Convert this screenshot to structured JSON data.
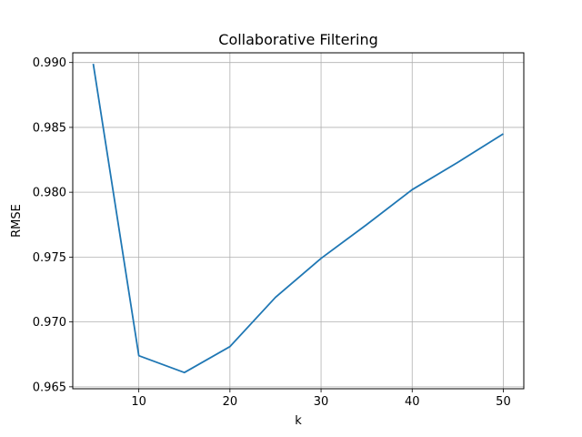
{
  "chart_data": {
    "type": "line",
    "title": "Collaborative Filtering",
    "xlabel": "k",
    "ylabel": "RMSE",
    "xlim": [
      2.75,
      52.25
    ],
    "ylim": [
      0.96485,
      0.99075
    ],
    "xticks": [
      10,
      20,
      30,
      40,
      50
    ],
    "yticks": [
      0.965,
      0.97,
      0.975,
      0.98,
      0.985,
      0.99
    ],
    "ytick_labels": [
      "0.965",
      "0.970",
      "0.975",
      "0.980",
      "0.985",
      "0.990"
    ],
    "grid": true,
    "series": [
      {
        "color": "#1f77b4",
        "x": [
          5,
          10,
          15,
          20,
          25,
          30,
          35,
          40,
          45,
          50
        ],
        "y": [
          0.9899,
          0.9674,
          0.9661,
          0.9681,
          0.9719,
          0.9749,
          0.9775,
          0.9802,
          0.9823,
          0.9845
        ]
      }
    ]
  }
}
